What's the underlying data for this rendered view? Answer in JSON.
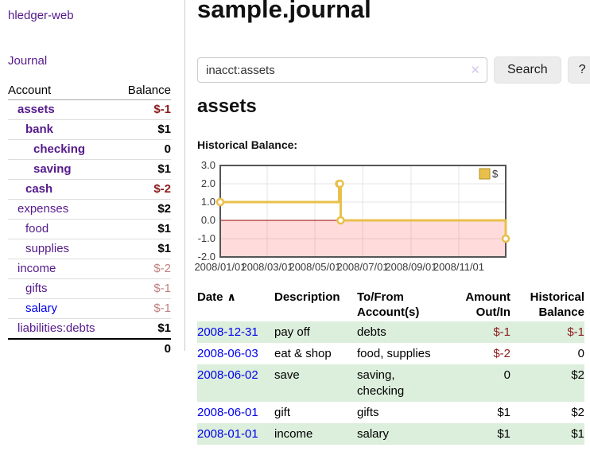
{
  "sidebar": {
    "app_title": "hledger-web",
    "journal_label": "Journal",
    "accounts": {
      "header_account": "Account",
      "header_balance": "Balance",
      "rows": [
        {
          "account": "assets",
          "balance": "$-1"
        },
        {
          "account": "bank",
          "balance": "$1"
        },
        {
          "account": "checking",
          "balance": "0"
        },
        {
          "account": "saving",
          "balance": "$1"
        },
        {
          "account": "cash",
          "balance": "$-2"
        },
        {
          "account": "expenses",
          "balance": "$2"
        },
        {
          "account": "food",
          "balance": "$1"
        },
        {
          "account": "supplies",
          "balance": "$1"
        },
        {
          "account": "income",
          "balance": "$-2"
        },
        {
          "account": "gifts",
          "balance": "$-1"
        },
        {
          "account": "salary",
          "balance": "$-1"
        },
        {
          "account": "liabilities:debts",
          "balance": "$1"
        }
      ],
      "total": "0"
    }
  },
  "main": {
    "title": "sample.journal",
    "search": {
      "value": "inacct:assets",
      "clear_icon": "✕",
      "button_label": "Search",
      "help_label": "?"
    },
    "account_heading": "assets",
    "chart_heading": "Historical Balance:"
  },
  "chart_data": {
    "type": "line",
    "style": "step",
    "title": "Historical Balance",
    "series": [
      {
        "name": "$",
        "points": [
          [
            "2008-01-01",
            1
          ],
          [
            "2008-06-01",
            2
          ],
          [
            "2008-06-02",
            2
          ],
          [
            "2008-06-03",
            0
          ],
          [
            "2008-12-31",
            -1
          ]
        ]
      }
    ],
    "x_range": [
      "2008-01-01",
      "2008-12-31"
    ],
    "ylim": [
      -2,
      3
    ],
    "yticks": [
      "3.0",
      "2.0",
      "1.0",
      "0.0",
      "-1.0",
      "-2.0"
    ],
    "xticks": [
      {
        "date": "2008-01-01",
        "label": "2008/01/01"
      },
      {
        "date": "2008-03-01",
        "label": "2008/03/01"
      },
      {
        "date": "2008-05-01",
        "label": "2008/05/01"
      },
      {
        "date": "2008-07-01",
        "label": "2008/07/01"
      },
      {
        "date": "2008-09-01",
        "label": "2008/09/01"
      },
      {
        "date": "2008-11-01",
        "label": "2008/11/01"
      }
    ],
    "legend": {
      "label": "$",
      "position": "top-right"
    },
    "grid": true,
    "line_color": "#e8c04a",
    "marker_fill": "#ffffff",
    "negative_region_color": "#ffdede",
    "zero_line_color": "#990000"
  },
  "register": {
    "headers": {
      "date": "Date",
      "sort_icon": "∧",
      "description": "Description",
      "account": "To/From Account(s)",
      "amount": "Amount Out/In",
      "balance": "Historical Balance"
    },
    "rows": [
      {
        "date": "2008-12-31",
        "description": "pay off",
        "account": "debts",
        "amount": "$-1",
        "balance": "$-1"
      },
      {
        "date": "2008-06-03",
        "description": "eat & shop",
        "account": "food, supplies",
        "amount": "$-2",
        "balance": "0"
      },
      {
        "date": "2008-06-02",
        "description": "save",
        "account": "saving, checking",
        "amount": "0",
        "balance": "$2"
      },
      {
        "date": "2008-06-01",
        "description": "gift",
        "account": "gifts",
        "amount": "$1",
        "balance": "$2"
      },
      {
        "date": "2008-01-01",
        "description": "income",
        "account": "salary",
        "amount": "$1",
        "balance": "$1"
      }
    ]
  },
  "colors": {
    "link_purple": "#551a8b",
    "link_blue": "#0000ee",
    "negative_strong": "#8b1c1c",
    "negative_soft": "#c08080",
    "row_stripe_green": "#dceedc",
    "chart_line": "#e8c04a"
  }
}
